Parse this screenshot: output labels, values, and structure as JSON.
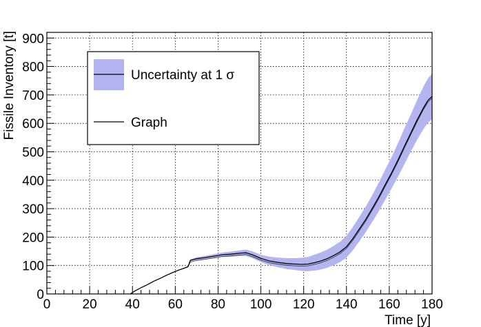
{
  "chart_data": {
    "type": "line",
    "title": "",
    "xlabel": "Time [y]",
    "ylabel": "Fissile Inventory [t]",
    "xlim": [
      0,
      180
    ],
    "ylim": [
      0,
      920
    ],
    "x_ticks": [
      "0",
      "20",
      "40",
      "60",
      "80",
      "100",
      "120",
      "140",
      "160",
      "180"
    ],
    "y_ticks": [
      "0",
      "100",
      "200",
      "300",
      "400",
      "500",
      "600",
      "700",
      "800",
      "900"
    ],
    "grid": true,
    "legend_position": "top-left",
    "legend": [
      {
        "label": "Uncertainty at 1 σ",
        "kind": "band"
      },
      {
        "label": "Graph",
        "kind": "line"
      }
    ],
    "colors": {
      "band": "#b4b4f0",
      "line": "#000000",
      "grid": "#000000"
    },
    "series": [
      {
        "name": "Graph",
        "x": [
          39,
          41,
          44,
          47,
          50,
          53,
          56,
          59,
          62,
          64,
          66,
          67,
          70,
          74,
          78,
          82,
          86,
          90,
          93,
          96,
          100,
          104,
          108,
          112,
          116,
          119,
          122,
          125,
          128,
          131,
          134,
          137,
          140,
          143,
          146,
          149,
          152,
          155,
          158,
          161,
          164,
          167,
          170,
          173,
          176,
          178,
          180
        ],
        "y": [
          0,
          10,
          22,
          33,
          45,
          55,
          66,
          76,
          85,
          90,
          96,
          118,
          124,
          128,
          133,
          138,
          140,
          143,
          145,
          138,
          125,
          116,
          111,
          107,
          105,
          104,
          105,
          110,
          116,
          124,
          135,
          148,
          166,
          195,
          228,
          262,
          300,
          340,
          383,
          425,
          470,
          518,
          565,
          612,
          655,
          680,
          695
        ]
      },
      {
        "name": "Uncertainty at 1 σ",
        "x": [
          39,
          41,
          44,
          47,
          50,
          53,
          56,
          59,
          62,
          64,
          66,
          67,
          70,
          74,
          78,
          82,
          86,
          90,
          93,
          96,
          100,
          104,
          108,
          112,
          116,
          119,
          122,
          125,
          128,
          131,
          134,
          137,
          140,
          143,
          146,
          149,
          152,
          155,
          158,
          161,
          164,
          167,
          170,
          173,
          176,
          178,
          180
        ],
        "y_low": [
          0,
          10,
          22,
          33,
          45,
          55,
          66,
          76,
          84,
          88,
          93,
          114,
          119,
          122,
          126,
          130,
          131,
          133,
          134,
          126,
          112,
          101,
          94,
          88,
          84,
          81,
          80,
          82,
          86,
          92,
          101,
          112,
          128,
          154,
          185,
          217,
          253,
          290,
          330,
          370,
          411,
          455,
          500,
          542,
          580,
          602,
          615
        ],
        "y_high": [
          0,
          10,
          22,
          33,
          45,
          55,
          66,
          76,
          86,
          92,
          99,
          122,
          129,
          134,
          140,
          146,
          149,
          153,
          156,
          150,
          138,
          131,
          128,
          126,
          126,
          127,
          130,
          138,
          146,
          156,
          169,
          184,
          204,
          236,
          271,
          307,
          347,
          390,
          436,
          480,
          529,
          581,
          630,
          682,
          730,
          757,
          775
        ]
      }
    ]
  }
}
